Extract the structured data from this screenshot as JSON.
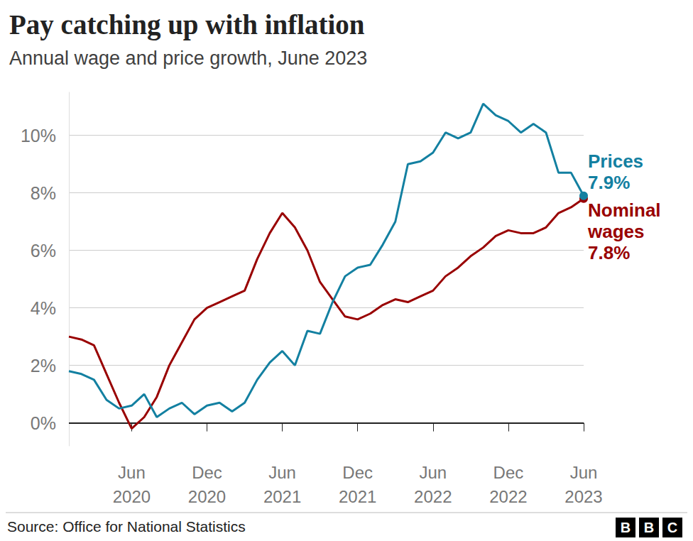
{
  "chart_data": {
    "type": "line",
    "title": "Pay catching up with inflation",
    "subtitle": "Annual wage and price growth, June 2023",
    "source": "Source: Office for National Statistics",
    "logo": "BBC",
    "categories": [
      null,
      null,
      null,
      null,
      null,
      "Jun 2020",
      null,
      null,
      null,
      null,
      null,
      "Dec 2020",
      null,
      null,
      null,
      null,
      null,
      "Jun 2021",
      null,
      null,
      null,
      null,
      null,
      "Dec 2021",
      null,
      null,
      null,
      null,
      null,
      "Jun 2022",
      null,
      null,
      null,
      null,
      null,
      "Dec 2022",
      null,
      null,
      null,
      null,
      null,
      "Jun 2023"
    ],
    "series": [
      {
        "name": "Prices",
        "color": "#1380a1",
        "values": [
          1.8,
          1.7,
          1.5,
          0.8,
          0.5,
          0.6,
          1.0,
          0.2,
          0.5,
          0.7,
          0.3,
          0.6,
          0.7,
          0.4,
          0.7,
          1.5,
          2.1,
          2.5,
          2.0,
          3.2,
          3.1,
          4.2,
          5.1,
          5.4,
          5.5,
          6.2,
          7.0,
          9.0,
          9.1,
          9.4,
          10.1,
          9.9,
          10.1,
          11.1,
          10.7,
          10.5,
          10.1,
          10.4,
          10.1,
          8.7,
          8.7,
          7.9
        ],
        "value_labels": [
          null,
          null,
          null,
          null,
          null,
          null,
          null,
          null,
          null,
          null,
          null,
          null,
          null,
          null,
          null,
          null,
          null,
          null,
          null,
          null,
          null,
          null,
          null,
          null,
          null,
          null,
          null,
          null,
          null,
          null,
          null,
          null,
          null,
          null,
          null,
          null,
          null,
          null,
          null,
          null,
          null,
          "7.9%"
        ]
      },
      {
        "name": "Nominal wages",
        "color": "#990000",
        "values": [
          3.0,
          2.9,
          2.7,
          1.7,
          0.7,
          -0.2,
          0.2,
          0.9,
          2.0,
          2.8,
          3.6,
          4.0,
          4.2,
          4.4,
          4.6,
          5.7,
          6.6,
          7.3,
          6.8,
          6.0,
          4.9,
          4.3,
          3.7,
          3.6,
          3.8,
          4.1,
          4.3,
          4.2,
          4.4,
          4.6,
          5.1,
          5.4,
          5.8,
          6.1,
          6.5,
          6.7,
          6.6,
          6.6,
          6.8,
          7.3,
          7.5,
          7.8
        ],
        "value_labels": [
          null,
          null,
          null,
          null,
          null,
          null,
          null,
          null,
          null,
          null,
          null,
          null,
          null,
          null,
          null,
          null,
          null,
          null,
          null,
          null,
          null,
          null,
          null,
          null,
          null,
          null,
          null,
          null,
          null,
          null,
          null,
          null,
          null,
          null,
          null,
          null,
          null,
          null,
          null,
          null,
          null,
          "7.8%"
        ]
      }
    ],
    "ylim": [
      -0.8,
      11.5
    ],
    "yticks": [
      {
        "value": 0,
        "label": "0%"
      },
      {
        "value": 2,
        "label": "2%"
      },
      {
        "value": 4,
        "label": "4%"
      },
      {
        "value": 6,
        "label": "6%"
      },
      {
        "value": 8,
        "label": "8%"
      },
      {
        "value": 10,
        "label": "10%"
      }
    ],
    "grid": true
  }
}
